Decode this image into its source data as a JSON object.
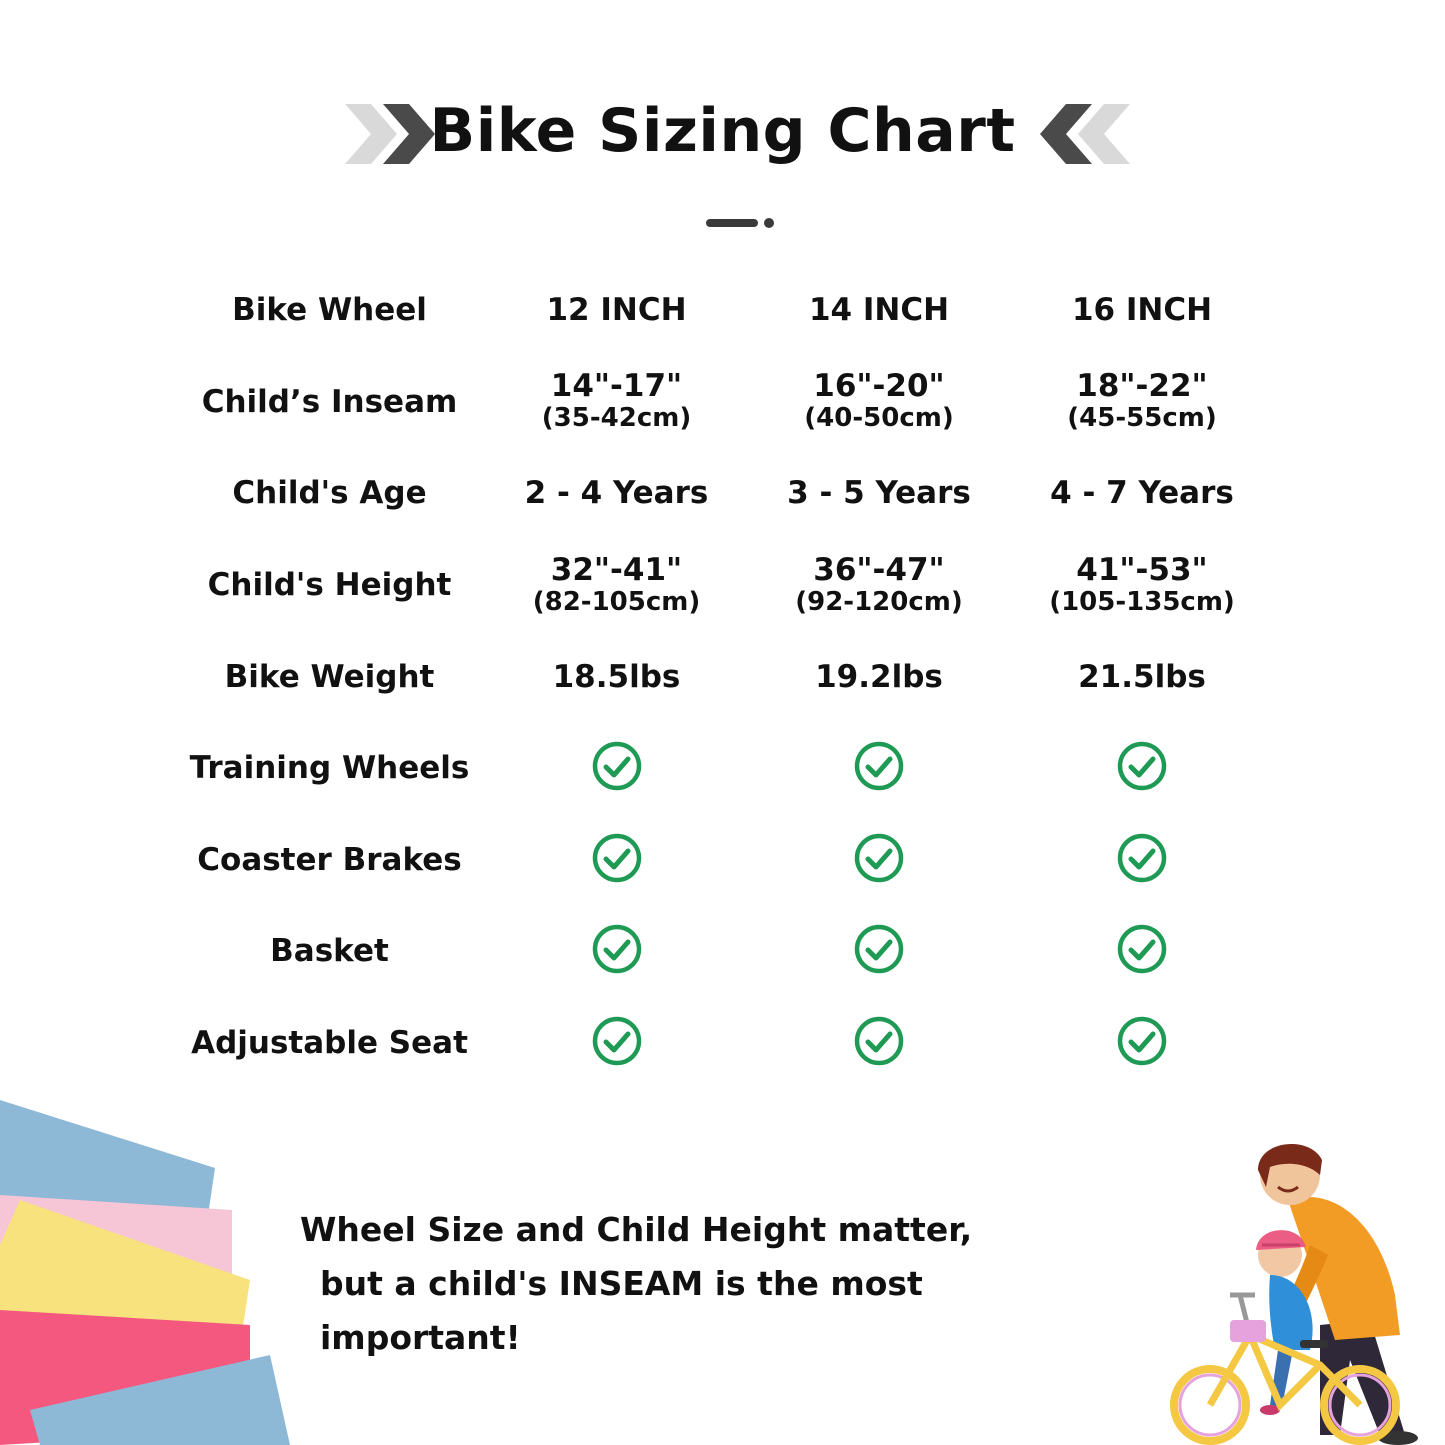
{
  "header": {
    "title": "Bike Sizing Chart"
  },
  "table": {
    "columns": [
      "Bike Wheel",
      "12 INCH",
      "14 INCH",
      "16 INCH"
    ],
    "rows": [
      {
        "label": "Child’s Inseam",
        "values": [
          {
            "main": "14\"-17\"",
            "sub": "(35-42cm)"
          },
          {
            "main": "16\"-20\"",
            "sub": "(40-50cm)"
          },
          {
            "main": "18\"-22\"",
            "sub": "(45-55cm)"
          }
        ]
      },
      {
        "label": "Child's Age",
        "values": [
          {
            "main": "2 - 4 Years"
          },
          {
            "main": "3 - 5 Years"
          },
          {
            "main": "4 - 7 Years"
          }
        ]
      },
      {
        "label": "Child's Height",
        "values": [
          {
            "main": "32\"-41\"",
            "sub": "(82-105cm)"
          },
          {
            "main": "36\"-47\"",
            "sub": "(92-120cm)"
          },
          {
            "main": "41\"-53\"",
            "sub": "(105-135cm)"
          }
        ]
      },
      {
        "label": "Bike Weight",
        "values": [
          {
            "main": "18.5lbs"
          },
          {
            "main": "19.2lbs"
          },
          {
            "main": "21.5lbs"
          }
        ]
      },
      {
        "label": "Training Wheels",
        "check": [
          true,
          true,
          true
        ]
      },
      {
        "label": "Coaster Brakes",
        "check": [
          true,
          true,
          true
        ]
      },
      {
        "label": "Basket",
        "check": [
          true,
          true,
          true
        ]
      },
      {
        "label": "Adjustable Seat",
        "check": [
          true,
          true,
          true
        ]
      }
    ]
  },
  "note": {
    "line1": "Wheel Size and Child Height matter,",
    "line2": "but a child's INSEAM is the most important!"
  },
  "colors": {
    "check": "#1f9a55",
    "grid_start": "#9fc9dc",
    "grid_mid": "#f6e58e",
    "grid_end": "#e6a2dc",
    "chevron_dark": "#4a4a4a",
    "chevron_light": "#d9d9d9"
  },
  "icons": [
    "chevron-right-icon",
    "chevron-left-icon",
    "check-circle-icon"
  ]
}
